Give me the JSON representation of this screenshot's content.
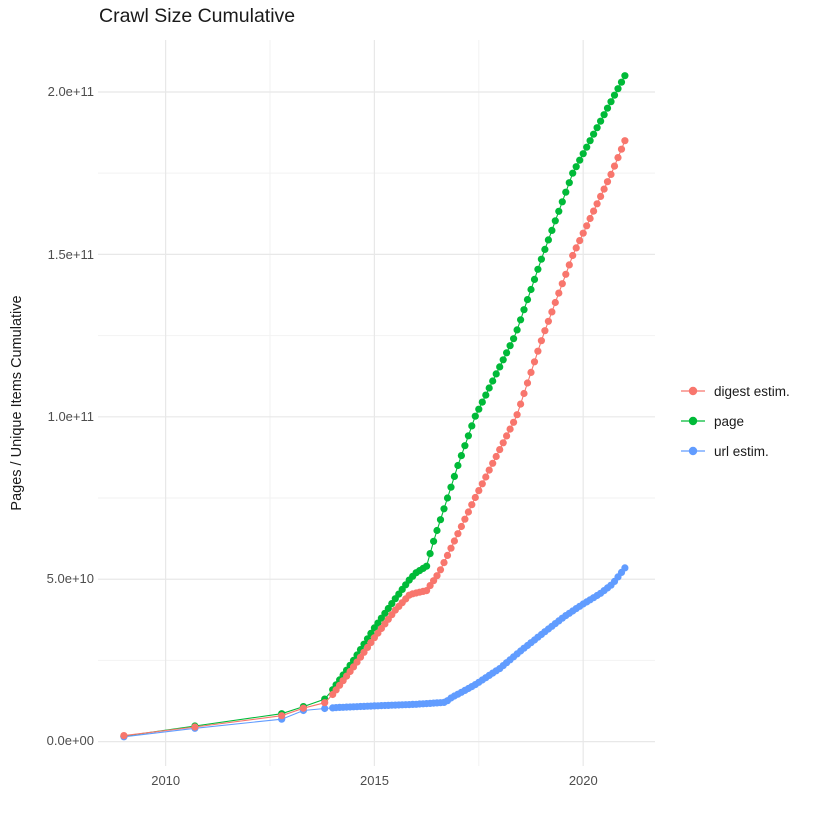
{
  "title": "Crawl Size Cumulative",
  "y_axis": {
    "label": "Pages / Unique Items Cumulative",
    "ticks": [
      "0.0e+00",
      "5.0e+10",
      "1.0e+11",
      "1.5e+11",
      "2.0e+11"
    ],
    "tick_values_e9": [
      0,
      50,
      100,
      150,
      200
    ],
    "minor_values_e9": [
      25,
      75,
      125,
      175
    ]
  },
  "x_axis": {
    "ticks": [
      "2010",
      "2015",
      "2020"
    ],
    "tick_values": [
      2010,
      2015,
      2020
    ],
    "minor_values": [
      2012.5,
      2017.5
    ]
  },
  "legend": {
    "items": [
      {
        "label": "digest estim.",
        "color": "#F8766D"
      },
      {
        "label": "page",
        "color": "#00BA38"
      },
      {
        "label": "url estim.",
        "color": "#619CFF"
      }
    ]
  },
  "colors": {
    "background": "#ffffff",
    "grid_major": "#e8e8e8",
    "grid_minor": "#f2f2f2",
    "axis_text": "#4d4d4d",
    "digest": "#F8766D",
    "page": "#00BA38",
    "url": "#619CFF"
  },
  "chart_data": {
    "type": "line",
    "mode": "lines+points",
    "title": "Crawl Size Cumulative",
    "xlabel": "",
    "ylabel": "Pages / Unique Items Cumulative",
    "grid": true,
    "legend_position": "right",
    "x_range": [
      2008.38,
      2021.72
    ],
    "y_range_e9": [
      -7.5,
      216
    ],
    "y_unit": "value x 1e9 pages / unique items",
    "point_interval_years": 0.0833,
    "monthly_from": 2014.0,
    "monthly_to": 2021.0,
    "note_points": "sparse crawls before 2014, monthly crawl points 2014-2021 interpolated through anchors",
    "series": [
      {
        "name": "digest estim.",
        "color": "#F8766D",
        "z": 3,
        "anchors_year_value_e9": [
          [
            2009.0,
            1.85
          ],
          [
            2010.7,
            4.5
          ],
          [
            2012.78,
            8.0
          ],
          [
            2013.3,
            10.3
          ],
          [
            2013.81,
            12.0
          ],
          [
            2014.0,
            14.5
          ],
          [
            2014.5,
            23
          ],
          [
            2015.0,
            32
          ],
          [
            2015.5,
            40.5
          ],
          [
            2015.85,
            45.3
          ],
          [
            2016.25,
            46.5
          ],
          [
            2016.55,
            52
          ],
          [
            2017.0,
            64
          ],
          [
            2017.41,
            75
          ],
          [
            2018.4,
            100
          ],
          [
            2019.04,
            125
          ],
          [
            2019.76,
            150
          ],
          [
            2020.68,
            175
          ],
          [
            2021.0,
            185
          ]
        ]
      },
      {
        "name": "page",
        "color": "#00BA38",
        "z": 1,
        "anchors_year_value_e9": [
          [
            2009.0,
            1.7
          ],
          [
            2010.7,
            4.8
          ],
          [
            2012.78,
            8.6
          ],
          [
            2013.3,
            10.8
          ],
          [
            2013.81,
            13.1
          ],
          [
            2014.0,
            16
          ],
          [
            2014.5,
            25
          ],
          [
            2015.0,
            35
          ],
          [
            2015.5,
            44
          ],
          [
            2015.85,
            50
          ],
          [
            2016.0,
            52
          ],
          [
            2016.25,
            54
          ],
          [
            2016.4,
            61
          ],
          [
            2017.0,
            85
          ],
          [
            2017.41,
            100
          ],
          [
            2018.37,
            125
          ],
          [
            2019.04,
            150
          ],
          [
            2019.75,
            175
          ],
          [
            2021.0,
            205
          ]
        ]
      },
      {
        "name": "url estim.",
        "color": "#619CFF",
        "z": 2,
        "anchors_year_value_e9": [
          [
            2009.0,
            1.5
          ],
          [
            2010.7,
            4.1
          ],
          [
            2012.78,
            6.9
          ],
          [
            2013.3,
            9.6
          ],
          [
            2013.81,
            10.2
          ],
          [
            2014.1,
            10.5
          ],
          [
            2015.0,
            11.0
          ],
          [
            2016.0,
            11.5
          ],
          [
            2016.7,
            12.1
          ],
          [
            2016.85,
            13.6
          ],
          [
            2017.0,
            14.6
          ],
          [
            2017.41,
            17.5
          ],
          [
            2018.0,
            22.5
          ],
          [
            2018.49,
            27.8
          ],
          [
            2019.04,
            33.4
          ],
          [
            2019.56,
            38.6
          ],
          [
            2019.98,
            42.2
          ],
          [
            2020.4,
            45.5
          ],
          [
            2020.7,
            48.5
          ],
          [
            2021.0,
            53.5
          ]
        ]
      }
    ]
  }
}
